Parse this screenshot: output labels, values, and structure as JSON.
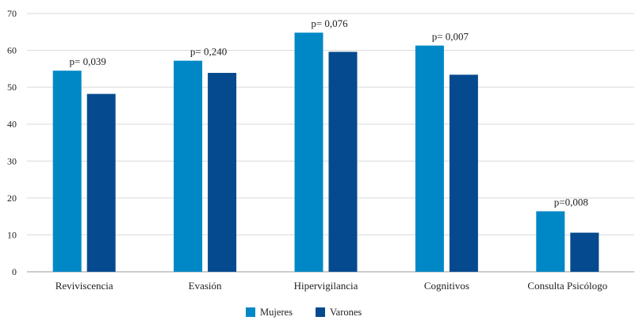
{
  "chart_data": {
    "type": "bar",
    "title": "",
    "xlabel": "",
    "ylabel": "",
    "ylim": [
      0,
      70
    ],
    "yticks": [
      0,
      10,
      20,
      30,
      40,
      50,
      60,
      70
    ],
    "grid": true,
    "legend_position": "bottom-center",
    "categories": [
      "Reviviscencia",
      "Evasión",
      "Hipervigilancia",
      "Cognitivos",
      "Consulta Psicólogo"
    ],
    "series": [
      {
        "name": "Mujeres",
        "color": "#0088C6",
        "values": [
          54.5,
          57.2,
          64.8,
          61.3,
          16.4
        ]
      },
      {
        "name": "Varones",
        "color": "#054A8E",
        "values": [
          48.2,
          53.9,
          59.6,
          53.4,
          10.6
        ]
      }
    ],
    "annotations": [
      "p= 0,039",
      "p= 0,240",
      "p= 0,076",
      "p= 0,007",
      "p=0,008"
    ]
  }
}
